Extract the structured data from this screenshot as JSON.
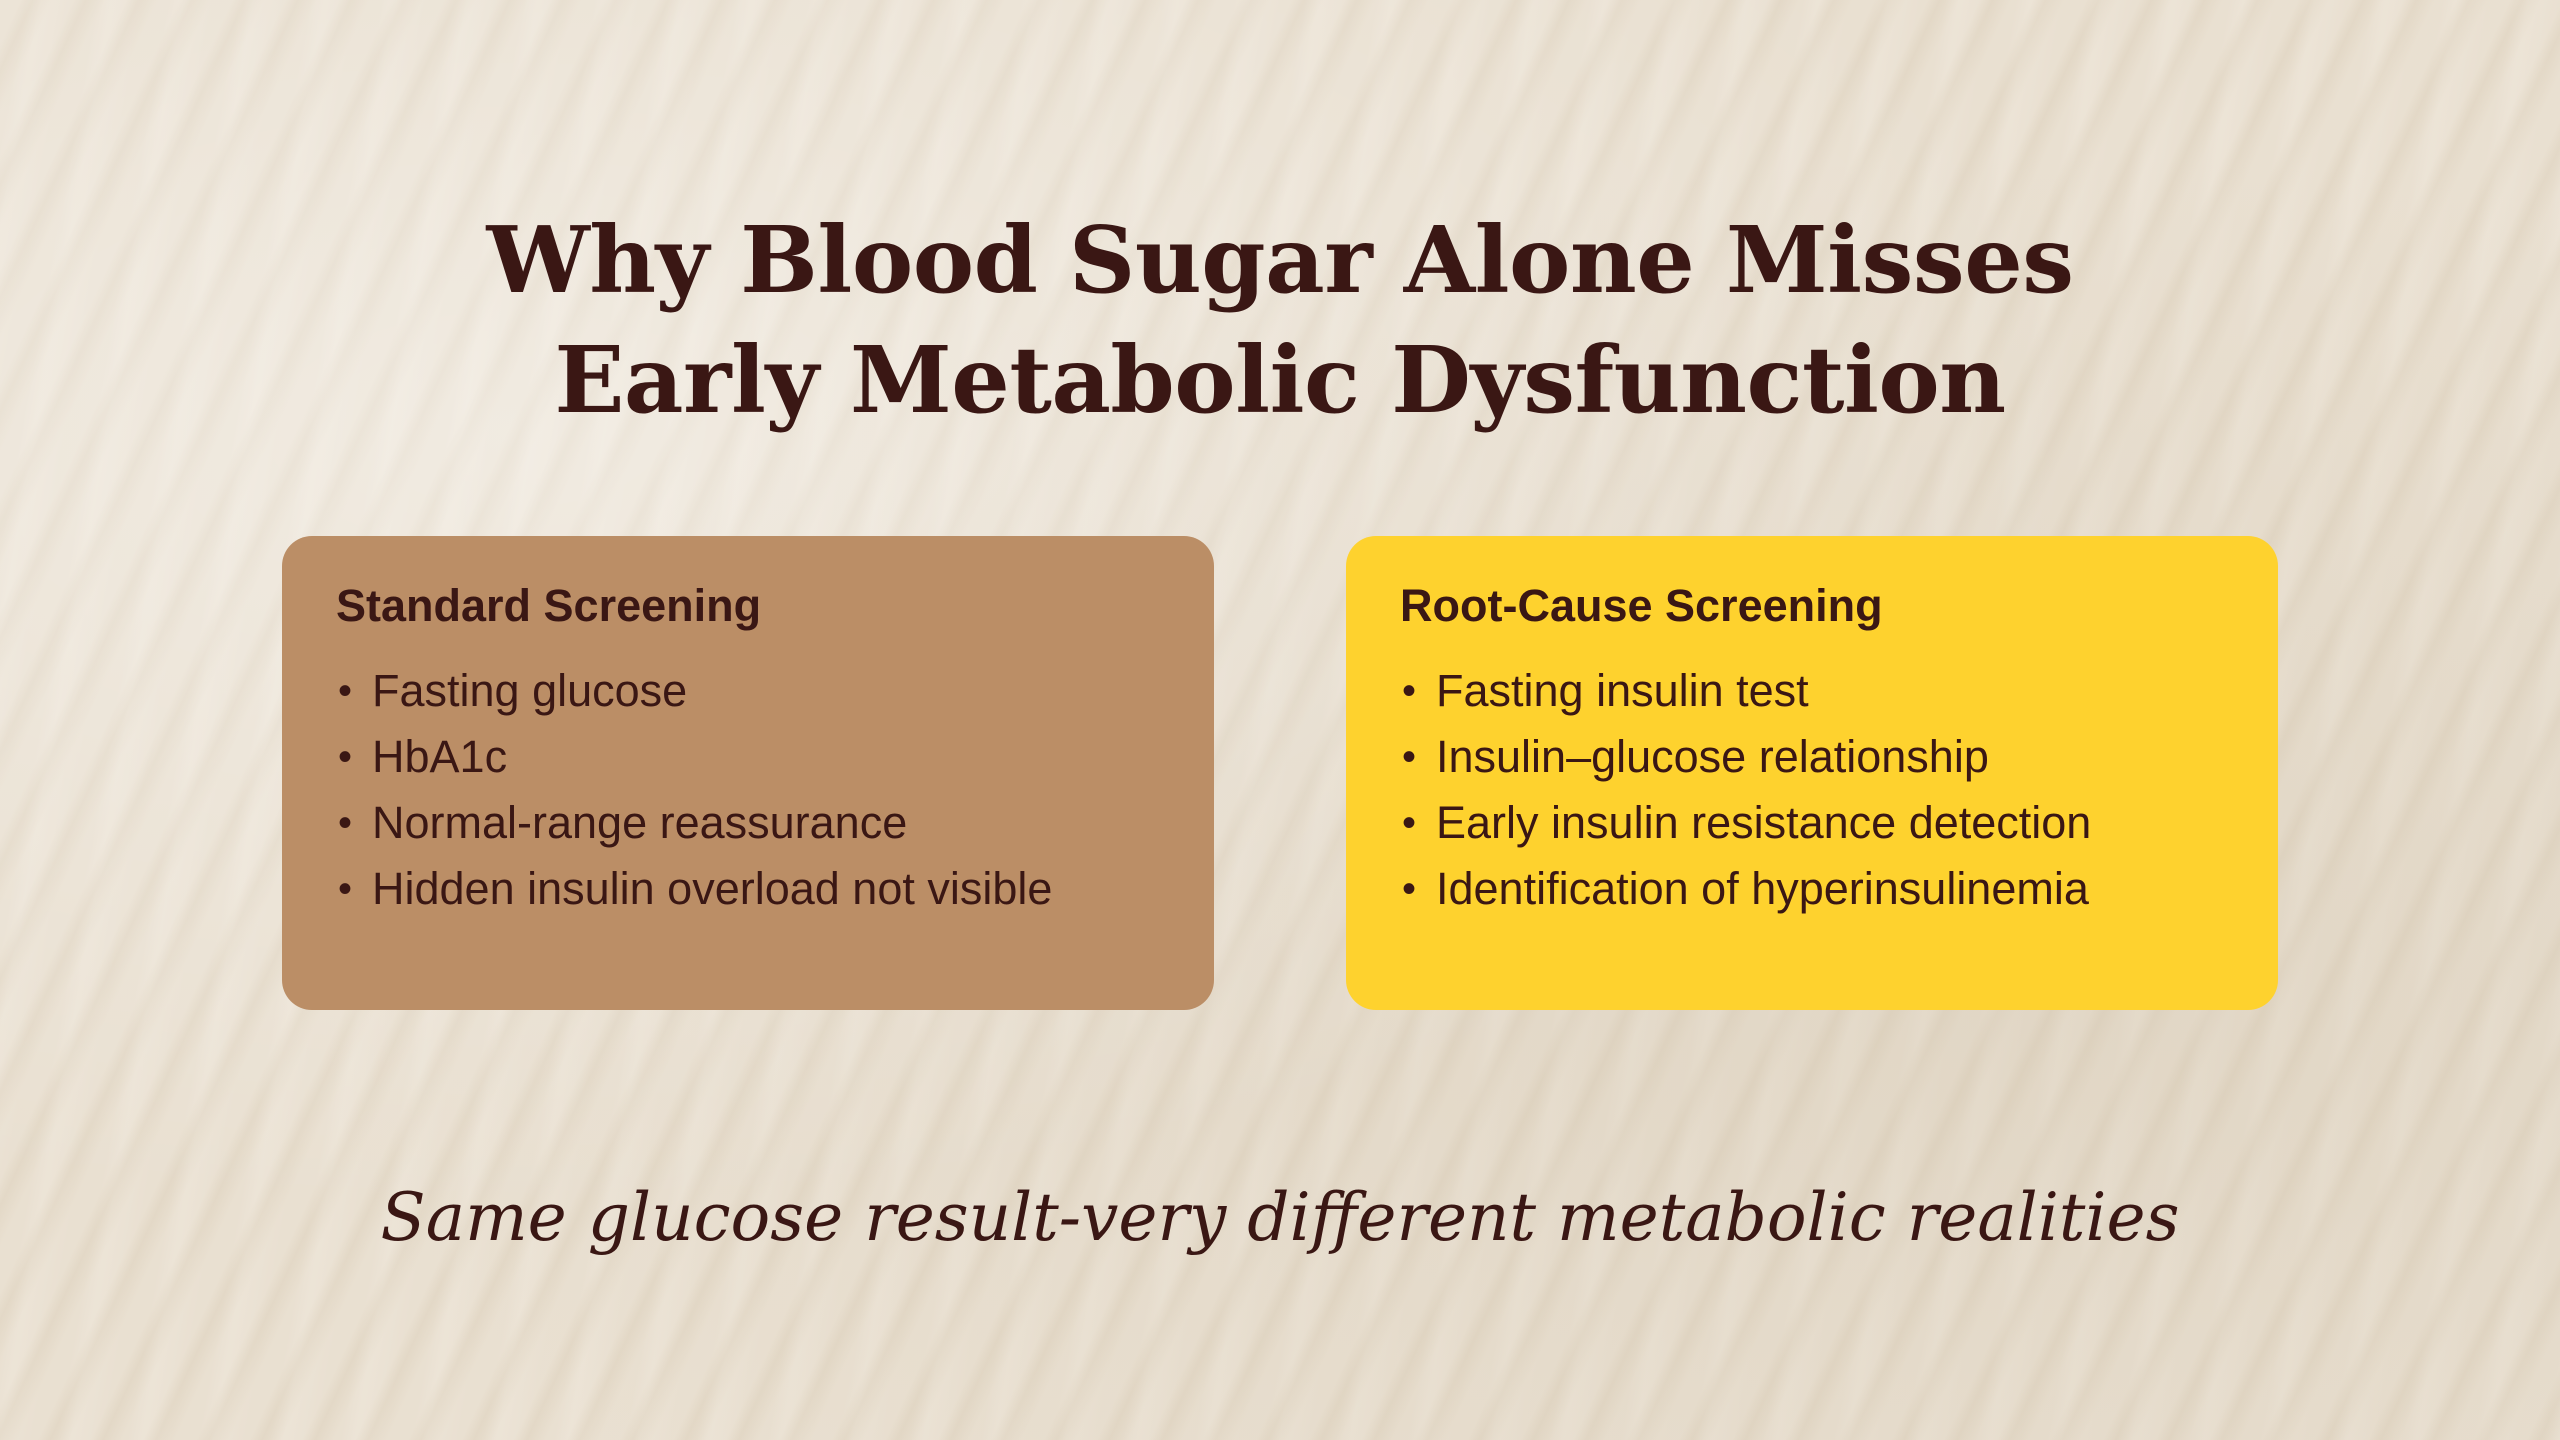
{
  "title": {
    "line1": "Why Blood Sugar Alone Misses",
    "line2": "Early Metabolic Dysfunction"
  },
  "cards": {
    "standard": {
      "heading": "Standard Screening",
      "color": "#bb8e66",
      "items": [
        "Fasting glucose",
        "HbA1c",
        "Normal-range reassurance",
        "Hidden insulin overload not visible"
      ]
    },
    "root_cause": {
      "heading": "Root-Cause Screening",
      "color": "#fed22e",
      "items": [
        "Fasting insulin test",
        "Insulin–glucose relationship",
        "Early insulin resistance detection",
        "Identification of hyperinsulinemia"
      ]
    }
  },
  "tagline": "Same glucose result-very different metabolic realities",
  "colors": {
    "background": "#e9dfcf",
    "text": "#3a1714"
  }
}
